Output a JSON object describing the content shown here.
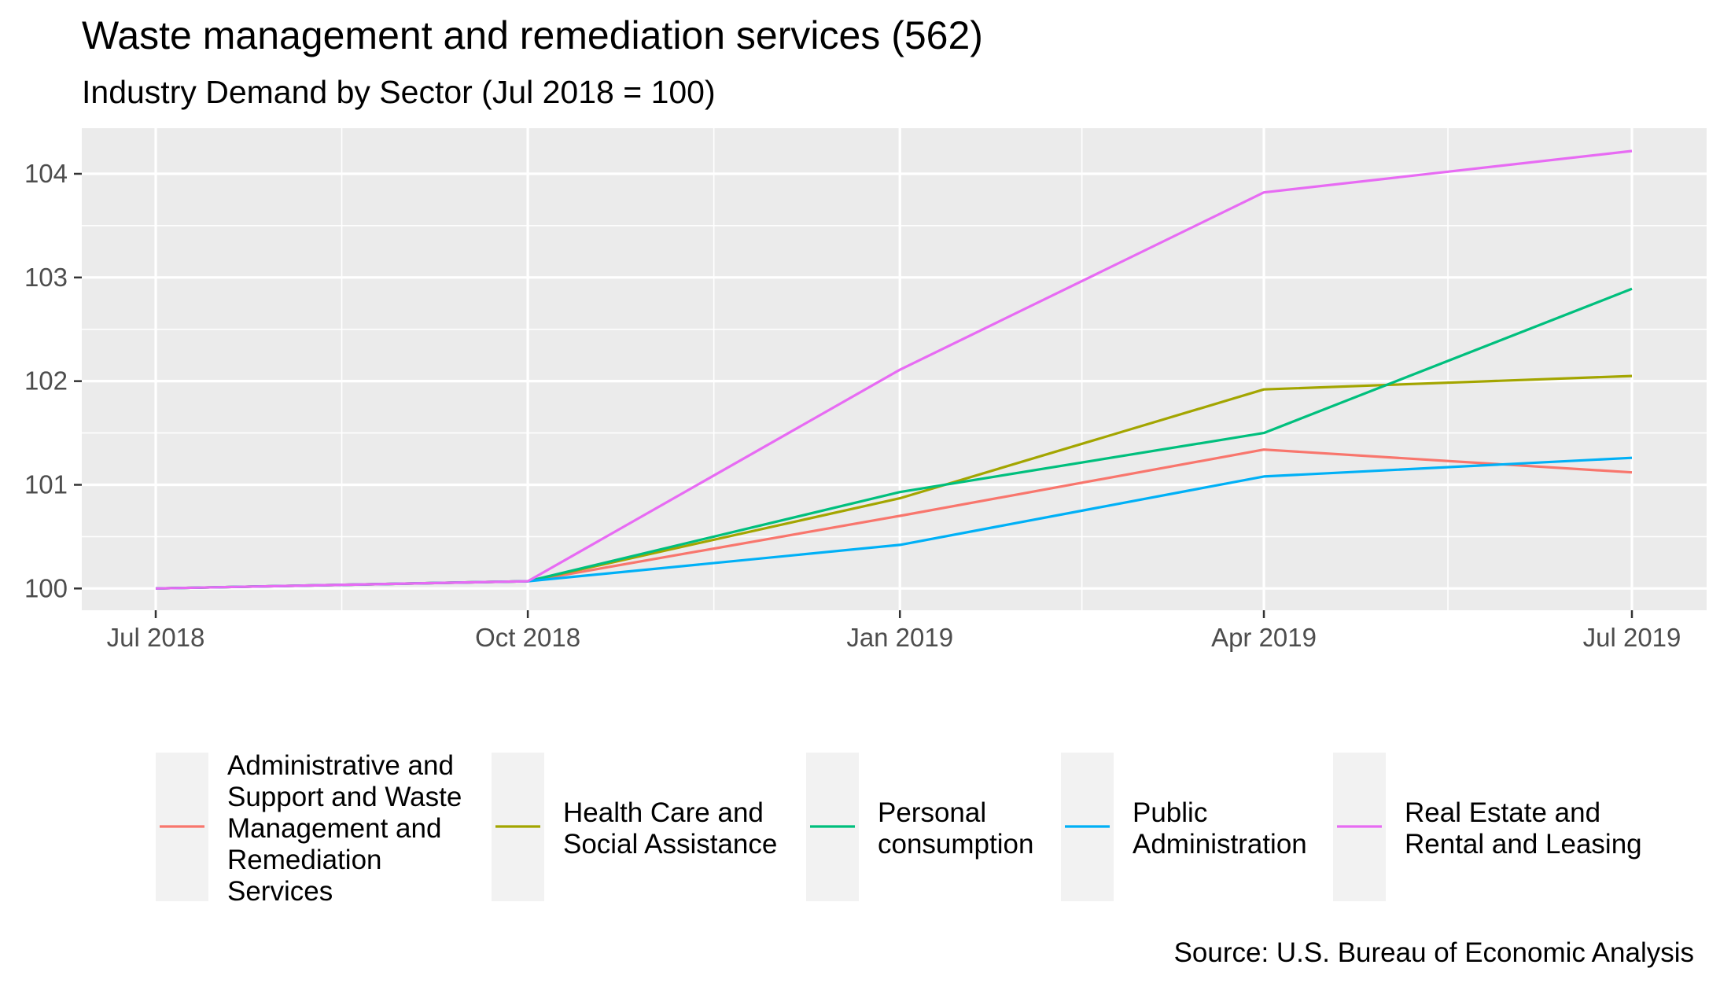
{
  "chart_data": {
    "type": "line",
    "title": "Waste management and remediation services (562)",
    "subtitle": "Industry Demand by Sector (Jul 2018 = 100)",
    "caption": "Source: U.S. Bureau of Economic Analysis",
    "xlabel": "",
    "ylabel": "",
    "x": [
      "2018-07-01",
      "2018-10-01",
      "2019-01-01",
      "2019-04-01",
      "2019-07-01"
    ],
    "x_ticks": [
      "Jul 2018",
      "Oct 2018",
      "Jan 2019",
      "Apr 2019",
      "Jul 2019"
    ],
    "y_ticks": [
      100,
      101,
      102,
      103,
      104
    ],
    "ylim": [
      99.79,
      104.44
    ],
    "grid": true,
    "legend_position": "bottom",
    "series": [
      {
        "name": "Administrative and\nSupport and Waste\nManagement and\nRemediation\nServices",
        "color": "#F8766D",
        "values": [
          100,
          100.07,
          100.7,
          101.34,
          101.12
        ]
      },
      {
        "name": "Health Care and\nSocial Assistance",
        "color": "#A3A500",
        "values": [
          100,
          100.07,
          100.87,
          101.92,
          102.05
        ]
      },
      {
        "name": "Personal\nconsumption",
        "color": "#00BF7D",
        "values": [
          100,
          100.07,
          100.93,
          101.5,
          102.89
        ]
      },
      {
        "name": "Public\nAdministration",
        "color": "#00B0F6",
        "values": [
          100,
          100.07,
          100.42,
          101.08,
          101.26
        ]
      },
      {
        "name": "Real Estate and\nRental and Leasing",
        "color": "#E76BF3",
        "values": [
          100,
          100.07,
          102.11,
          103.82,
          104.22
        ]
      }
    ]
  }
}
